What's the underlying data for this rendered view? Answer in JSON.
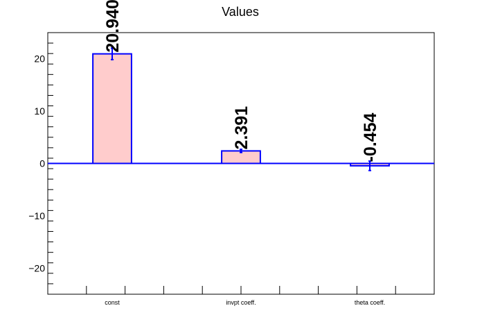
{
  "chart_data": {
    "type": "bar",
    "title": "Values",
    "xlabel": "",
    "ylabel": "",
    "categories": [
      "const",
      "invpt coeff.",
      "theta coeff."
    ],
    "values": [
      20.94,
      2.391,
      -0.454
    ],
    "errors": [
      1.1,
      0.3,
      0.9
    ],
    "value_labels": [
      "20.940",
      "2.391",
      "-0.454"
    ],
    "ylim": [
      -25,
      25
    ],
    "yticks": [
      -20,
      -10,
      0,
      10,
      20
    ],
    "ytick_labels": [
      "−20",
      "−10",
      "0",
      "10",
      "20"
    ],
    "grid": false,
    "legend": "none",
    "colors": {
      "bar_fill": "#ffcccc",
      "bar_edge": "#0000ff",
      "zero_line": "#0000ff",
      "axis": "#000000",
      "label": "#000000"
    }
  }
}
